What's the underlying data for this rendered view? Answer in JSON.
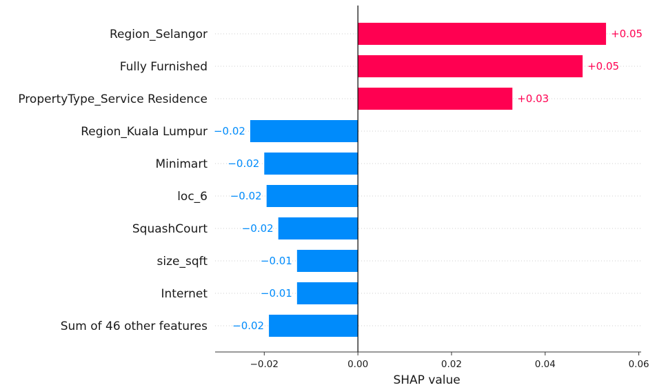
{
  "chart_data": {
    "type": "bar",
    "orientation": "horizontal",
    "xlabel": "SHAP value",
    "xlim": [
      -0.0305,
      0.0605
    ],
    "xticks": [
      -0.02,
      0.0,
      0.02,
      0.04,
      0.06
    ],
    "xtick_labels": [
      "−0.02",
      "0.00",
      "0.02",
      "0.04",
      "0.06"
    ],
    "grid": "dotted horizontal lines per row",
    "categories": [
      "Region_Selangor",
      "Fully Furnished",
      "PropertyType_Service Residence",
      "Region_Kuala Lumpur",
      "Minimart",
      "loc_6",
      "SquashCourt",
      "size_sqft",
      "Internet",
      "Sum of 46 other features"
    ],
    "values": [
      0.053,
      0.048,
      0.033,
      -0.023,
      -0.02,
      -0.0195,
      -0.017,
      -0.013,
      -0.013,
      -0.019
    ],
    "value_labels": [
      "+0.05",
      "+0.05",
      "+0.03",
      "−0.02",
      "−0.02",
      "−0.02",
      "−0.02",
      "−0.01",
      "−0.01",
      "−0.02"
    ],
    "colors": {
      "positive": "#ff0051",
      "negative": "#008bfb",
      "zero_line": "#000000",
      "axis": "#333333",
      "grid": "#cccccc"
    }
  }
}
